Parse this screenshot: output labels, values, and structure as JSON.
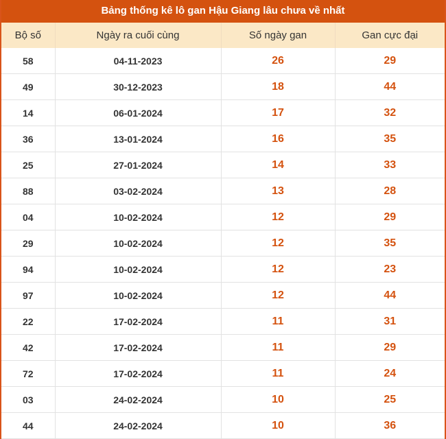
{
  "title": "Bảng thống kê lô gan Hậu Giang lâu chưa về nhất",
  "columns": [
    "Bộ số",
    "Ngày ra cuối cùng",
    "Số ngày gan",
    "Gan cực đại"
  ],
  "accent": "#d4520f",
  "rows": [
    [
      "58",
      "04-11-2023",
      "26",
      "29"
    ],
    [
      "49",
      "30-12-2023",
      "18",
      "44"
    ],
    [
      "14",
      "06-01-2024",
      "17",
      "32"
    ],
    [
      "36",
      "13-01-2024",
      "16",
      "35"
    ],
    [
      "25",
      "27-01-2024",
      "14",
      "33"
    ],
    [
      "88",
      "03-02-2024",
      "13",
      "28"
    ],
    [
      "04",
      "10-02-2024",
      "12",
      "29"
    ],
    [
      "29",
      "10-02-2024",
      "12",
      "35"
    ],
    [
      "94",
      "10-02-2024",
      "12",
      "23"
    ],
    [
      "97",
      "10-02-2024",
      "12",
      "44"
    ],
    [
      "22",
      "17-02-2024",
      "11",
      "31"
    ],
    [
      "42",
      "17-02-2024",
      "11",
      "29"
    ],
    [
      "72",
      "17-02-2024",
      "11",
      "24"
    ],
    [
      "03",
      "24-02-2024",
      "10",
      "25"
    ],
    [
      "44",
      "24-02-2024",
      "10",
      "36"
    ]
  ]
}
